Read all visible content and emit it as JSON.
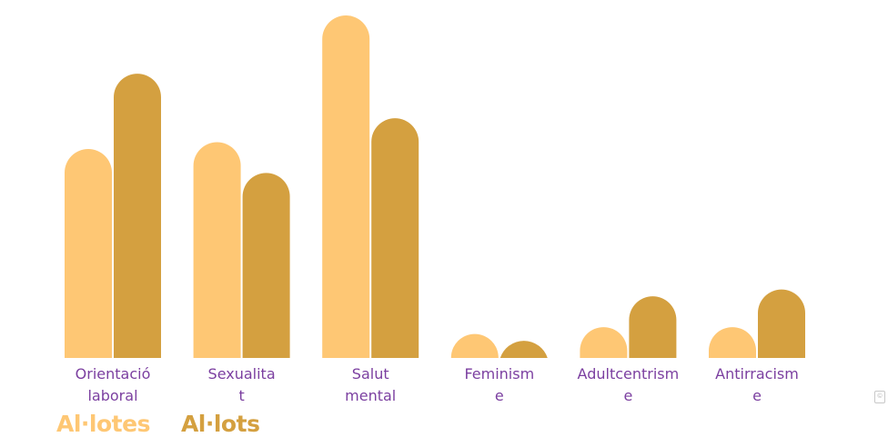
{
  "chart_data": {
    "type": "bar",
    "title": "",
    "xlabel": "",
    "ylabel": "",
    "ylim": [
      0,
      100
    ],
    "grid": false,
    "legend_position": "bottom-left",
    "categories": [
      [
        "Orientació",
        "laboral"
      ],
      [
        "Sexualita",
        "t"
      ],
      [
        "Salut",
        "mental"
      ],
      [
        "Feminism",
        "e"
      ],
      [
        "Adultcentrism",
        "e"
      ],
      [
        "Antirracism",
        "e"
      ]
    ],
    "series": [
      {
        "name": "Al·lotes",
        "color": "#fec774",
        "values": [
          61,
          63,
          100,
          7,
          9,
          9
        ]
      },
      {
        "name": "Al·lots",
        "color": "#d4a040",
        "values": [
          83,
          54,
          70,
          5,
          18,
          20
        ]
      }
    ]
  }
}
